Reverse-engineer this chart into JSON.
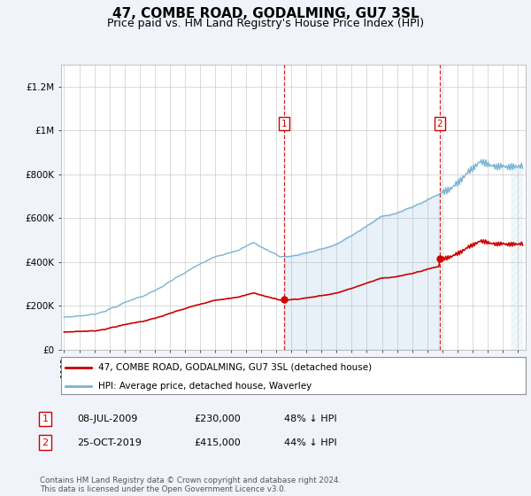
{
  "title": "47, COMBE ROAD, GODALMING, GU7 3SL",
  "subtitle": "Price paid vs. HM Land Registry's House Price Index (HPI)",
  "title_fontsize": 11,
  "subtitle_fontsize": 9,
  "ylabel_ticks": [
    "£0",
    "£200K",
    "£400K",
    "£600K",
    "£800K",
    "£1M",
    "£1.2M"
  ],
  "ytick_values": [
    0,
    200000,
    400000,
    600000,
    800000,
    1000000,
    1200000
  ],
  "ylim": [
    0,
    1300000
  ],
  "xlim_start": 1994.8,
  "xlim_end": 2025.5,
  "hpi_color": "#7ab3d4",
  "price_color": "#cc0000",
  "sale1_date": 2009.52,
  "sale1_price": 230000,
  "sale1_label": "1",
  "sale2_date": 2019.82,
  "sale2_price": 415000,
  "sale2_label": "2",
  "legend_line1": "47, COMBE ROAD, GODALMING, GU7 3SL (detached house)",
  "legend_line2": "HPI: Average price, detached house, Waverley",
  "table_row1": [
    "1",
    "08-JUL-2009",
    "£230,000",
    "48% ↓ HPI"
  ],
  "table_row2": [
    "2",
    "25-OCT-2019",
    "£415,000",
    "44% ↓ HPI"
  ],
  "footer": "Contains HM Land Registry data © Crown copyright and database right 2024.\nThis data is licensed under the Open Government Licence v3.0.",
  "background_color": "#f0f4fa",
  "plot_bg_color": "#ffffff",
  "grid_color": "#cccccc",
  "hpi_fill_alpha": 0.18,
  "hatch_fill_alpha": 0.1
}
